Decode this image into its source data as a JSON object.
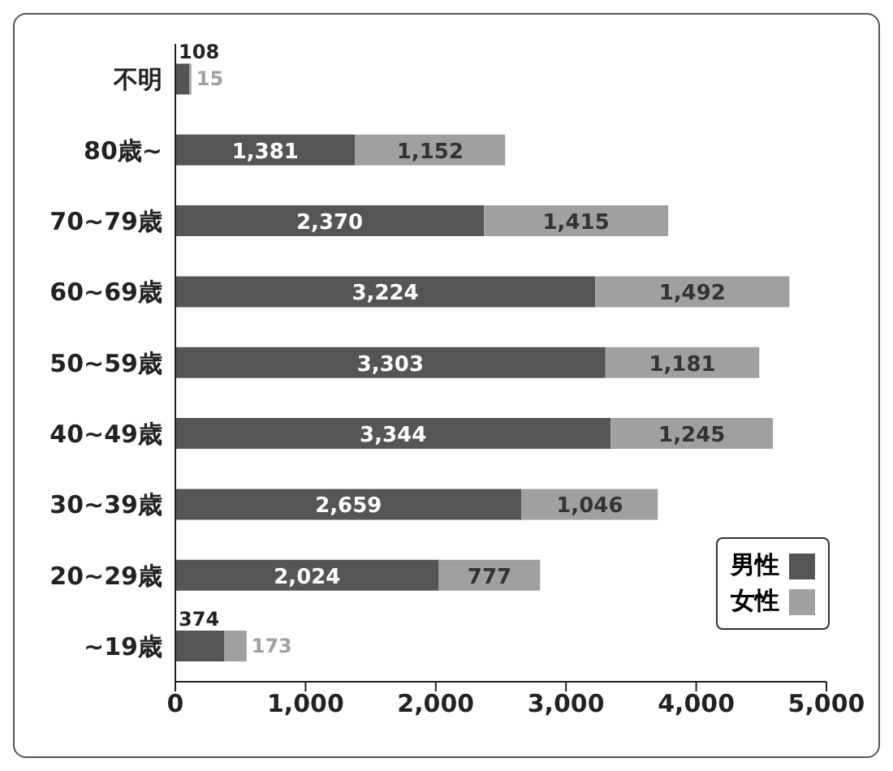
{
  "chart_data": {
    "type": "bar",
    "orientation": "horizontal",
    "stacked": true,
    "categories": [
      "不明",
      "80歳~",
      "70~79歳",
      "60~69歳",
      "50~59歳",
      "40~49歳",
      "30~39歳",
      "20~29歳",
      "~19歳"
    ],
    "series": [
      {
        "name": "男性",
        "color": "#555555",
        "values": [
          108,
          1381,
          2370,
          3224,
          3303,
          3344,
          2659,
          2024,
          374
        ],
        "value_labels": [
          "108",
          "1,381",
          "2,370",
          "3,224",
          "3,303",
          "3,344",
          "2,659",
          "2,024",
          "374"
        ]
      },
      {
        "name": "女性",
        "color": "#a0a0a0",
        "values": [
          15,
          1152,
          1415,
          1492,
          1181,
          1245,
          1046,
          777,
          173
        ],
        "value_labels": [
          "15",
          "1,152",
          "1,415",
          "1,492",
          "1,181",
          "1,245",
          "1,046",
          "777",
          "173"
        ]
      }
    ],
    "xlim": [
      0,
      5000
    ],
    "xticks": [
      0,
      {
        "value": 1000,
        "label": "1,000"
      },
      {
        "value": 2000,
        "label": "2,000"
      },
      {
        "value": 3000,
        "label": "3,000"
      },
      {
        "value": 4000,
        "label": "4,000"
      },
      {
        "value": 5000,
        "label": "5,000"
      }
    ],
    "legend": "bottom right",
    "grid": false
  }
}
